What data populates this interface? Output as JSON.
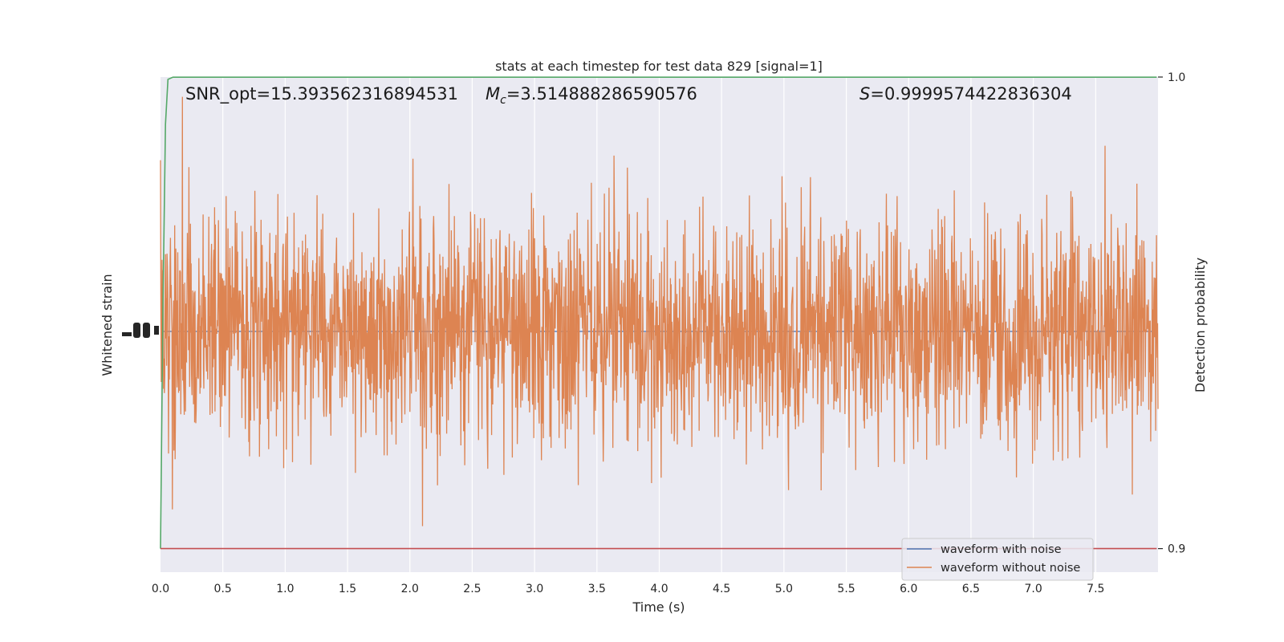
{
  "chart_data": {
    "type": "line",
    "title": "stats at each timestep for test data 829 [signal=1]",
    "xlabel": "Time (s)",
    "ylabel_left": "Whitened strain",
    "ylabel_right": "Detection probability",
    "xlim": [
      0,
      8
    ],
    "x_ticks": [
      "0.0",
      "0.5",
      "1.0",
      "1.5",
      "2.0",
      "2.5",
      "3.0",
      "3.5",
      "4.0",
      "4.5",
      "5.0",
      "5.5",
      "6.0",
      "6.5",
      "7.0",
      "7.5"
    ],
    "right_ylim": [
      0.895,
      1.0
    ],
    "right_ticks": [
      "1.0",
      "0.9"
    ],
    "grid": true,
    "legend_position": "lower right",
    "annotations": {
      "snr": "SNR_opt=15.393562316894531",
      "mc_symbol": "M",
      "mc_sub": "c",
      "mc_value": "=3.514888286590576",
      "s_symbol": "S",
      "s_value": "=0.9999574422836304"
    },
    "series": [
      {
        "name": "waveform with noise",
        "color": "#4c72b0",
        "axis": "left",
        "kind": "noise"
      },
      {
        "name": "waveform without noise",
        "color": "#dd8452",
        "axis": "left",
        "kind": "noise"
      },
      {
        "color": "#55a868",
        "axis": "right",
        "x": [
          0.0,
          0.02,
          0.04,
          0.06,
          0.1,
          7.99
        ],
        "values": [
          0.9,
          0.952,
          0.99,
          0.9995,
          0.99996,
          0.99996
        ]
      },
      {
        "color": "#c44e52",
        "axis": "right",
        "x": [
          0.0,
          7.99
        ],
        "values": [
          0.9,
          0.9
        ]
      }
    ]
  }
}
